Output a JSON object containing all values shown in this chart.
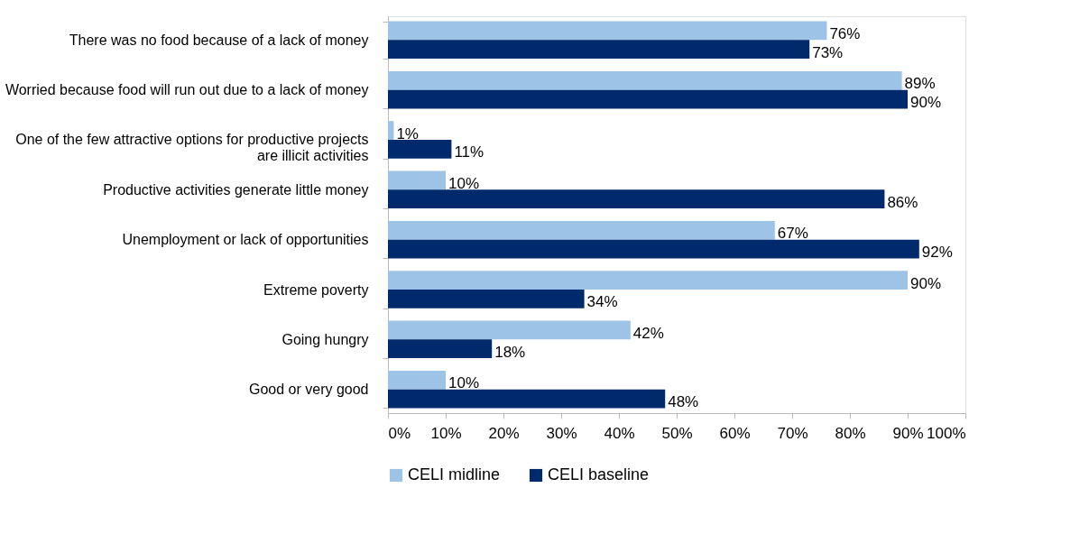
{
  "chart_data": {
    "type": "bar",
    "orientation": "horizontal",
    "categories": [
      "There was no food because of a lack of money",
      "Worried because food will run out due to a lack of money",
      "One of the few attractive options for productive projects are illicit activities",
      "Productive activities generate little money",
      "Unemployment or lack of opportunities",
      "Extreme poverty",
      "Going hungry",
      "Good or very good"
    ],
    "series": [
      {
        "name": "CELI midline",
        "color": "#9dc3e6",
        "values": [
          76,
          89,
          1,
          10,
          67,
          90,
          42,
          10
        ],
        "value_labels": [
          "76%",
          "89%",
          "1%",
          "10%",
          "67%",
          "90%",
          "42%",
          "10%"
        ]
      },
      {
        "name": "CELI baseline",
        "color": "#002a6c",
        "values": [
          73,
          90,
          11,
          86,
          92,
          34,
          18,
          48
        ],
        "value_labels": [
          "73%",
          "90%",
          "11%",
          "86%",
          "92%",
          "34%",
          "18%",
          "48%"
        ]
      }
    ],
    "xlim": [
      0,
      100
    ],
    "xticks": [
      {
        "value": 0,
        "label": "0%"
      },
      {
        "value": 10,
        "label": "10%"
      },
      {
        "value": 20,
        "label": "20%"
      },
      {
        "value": 30,
        "label": "30%"
      },
      {
        "value": 40,
        "label": "40%"
      },
      {
        "value": 50,
        "label": "50%"
      },
      {
        "value": 60,
        "label": "60%"
      },
      {
        "value": 70,
        "label": "70%"
      },
      {
        "value": 80,
        "label": "80%"
      },
      {
        "value": 90,
        "label": "90%"
      },
      {
        "value": 100,
        "label": "100%"
      }
    ],
    "grid": false,
    "legend": "bottom"
  }
}
